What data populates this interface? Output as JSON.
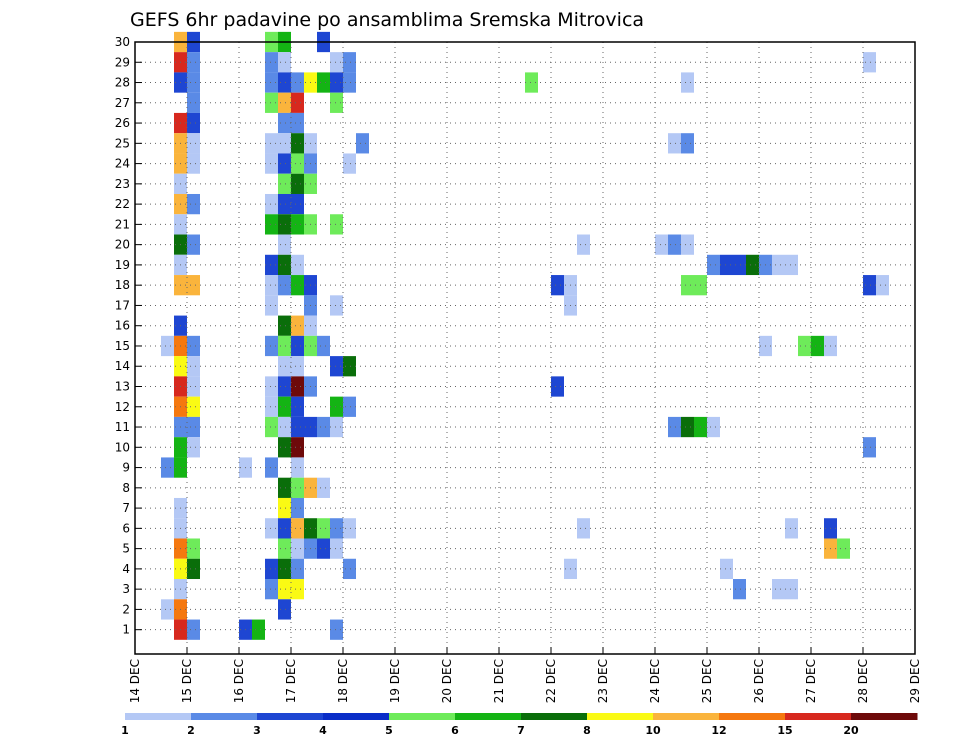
{
  "chart_data": {
    "type": "heatmap",
    "title": "GEFS 6hr padavine po ansamblima Sremska Mitrovica",
    "xlabel": "",
    "ylabel": "",
    "x_ticks": [
      "14 DEC",
      "15 DEC",
      "16 DEC",
      "17 DEC",
      "18 DEC",
      "19 DEC",
      "20 DEC",
      "21 DEC",
      "22 DEC",
      "23 DEC",
      "24 DEC",
      "25 DEC",
      "26 DEC",
      "27 DEC",
      "28 DEC",
      "29 DEC"
    ],
    "xlim": [
      0,
      60
    ],
    "x_unit": "6-hour steps from 14 DEC 00Z",
    "y_ticks": [
      1,
      2,
      3,
      4,
      5,
      6,
      7,
      8,
      9,
      10,
      11,
      12,
      13,
      14,
      15,
      16,
      17,
      18,
      19,
      20,
      21,
      22,
      23,
      24,
      25,
      26,
      27,
      28,
      29,
      30
    ],
    "ylim": [
      0,
      30
    ],
    "grid": true,
    "colorbar": {
      "labels": [
        "1",
        "2",
        "3",
        "4",
        "5",
        "6",
        "7",
        "8",
        "10",
        "12",
        "15",
        "20"
      ],
      "colors": [
        "#b4c8f5",
        "#5a8ae6",
        "#1e46d2",
        "#0a2dc8",
        "#6eeb5a",
        "#14b414",
        "#0a6e0a",
        "#fafa14",
        "#fab43c",
        "#f5780f",
        "#d7281e",
        "#6e0a0a"
      ]
    },
    "cells": [
      {
        "x": 3,
        "y": 30,
        "level": 10
      },
      {
        "x": 4,
        "y": 30,
        "level": 3
      },
      {
        "x": 10,
        "y": 30,
        "level": 5
      },
      {
        "x": 11,
        "y": 30,
        "level": 6
      },
      {
        "x": 14,
        "y": 30,
        "level": 3
      },
      {
        "x": 3,
        "y": 29,
        "level": 15
      },
      {
        "x": 4,
        "y": 29,
        "level": 2
      },
      {
        "x": 10,
        "y": 29,
        "level": 2
      },
      {
        "x": 11,
        "y": 29,
        "level": 1
      },
      {
        "x": 15,
        "y": 29,
        "level": 1
      },
      {
        "x": 16,
        "y": 29,
        "level": 2
      },
      {
        "x": 56,
        "y": 29,
        "level": 1
      },
      {
        "x": 3,
        "y": 28,
        "level": 3
      },
      {
        "x": 4,
        "y": 28,
        "level": 2
      },
      {
        "x": 10,
        "y": 28,
        "level": 2
      },
      {
        "x": 11,
        "y": 28,
        "level": 3
      },
      {
        "x": 12,
        "y": 28,
        "level": 2
      },
      {
        "x": 13,
        "y": 28,
        "level": 8
      },
      {
        "x": 14,
        "y": 28,
        "level": 6
      },
      {
        "x": 15,
        "y": 28,
        "level": 3
      },
      {
        "x": 16,
        "y": 28,
        "level": 2
      },
      {
        "x": 30,
        "y": 28,
        "level": 5
      },
      {
        "x": 42,
        "y": 28,
        "level": 1
      },
      {
        "x": 4,
        "y": 27,
        "level": 2
      },
      {
        "x": 10,
        "y": 27,
        "level": 5
      },
      {
        "x": 11,
        "y": 27,
        "level": 10
      },
      {
        "x": 12,
        "y": 27,
        "level": 15
      },
      {
        "x": 15,
        "y": 27,
        "level": 5
      },
      {
        "x": 3,
        "y": 26,
        "level": 15
      },
      {
        "x": 4,
        "y": 26,
        "level": 3
      },
      {
        "x": 11,
        "y": 26,
        "level": 2
      },
      {
        "x": 12,
        "y": 26,
        "level": 2
      },
      {
        "x": 3,
        "y": 25,
        "level": 10
      },
      {
        "x": 4,
        "y": 25,
        "level": 1
      },
      {
        "x": 10,
        "y": 25,
        "level": 1
      },
      {
        "x": 11,
        "y": 25,
        "level": 1
      },
      {
        "x": 12,
        "y": 25,
        "level": 7
      },
      {
        "x": 13,
        "y": 25,
        "level": 1
      },
      {
        "x": 17,
        "y": 25,
        "level": 2
      },
      {
        "x": 41,
        "y": 25,
        "level": 1
      },
      {
        "x": 42,
        "y": 25,
        "level": 2
      },
      {
        "x": 3,
        "y": 24,
        "level": 10
      },
      {
        "x": 4,
        "y": 24,
        "level": 1
      },
      {
        "x": 10,
        "y": 24,
        "level": 1
      },
      {
        "x": 11,
        "y": 24,
        "level": 3
      },
      {
        "x": 12,
        "y": 24,
        "level": 5
      },
      {
        "x": 13,
        "y": 24,
        "level": 2
      },
      {
        "x": 16,
        "y": 24,
        "level": 1
      },
      {
        "x": 3,
        "y": 23,
        "level": 1
      },
      {
        "x": 11,
        "y": 23,
        "level": 5
      },
      {
        "x": 12,
        "y": 23,
        "level": 7
      },
      {
        "x": 13,
        "y": 23,
        "level": 5
      },
      {
        "x": 3,
        "y": 22,
        "level": 10
      },
      {
        "x": 4,
        "y": 22,
        "level": 2
      },
      {
        "x": 10,
        "y": 22,
        "level": 1
      },
      {
        "x": 11,
        "y": 22,
        "level": 3
      },
      {
        "x": 12,
        "y": 22,
        "level": 3
      },
      {
        "x": 3,
        "y": 21,
        "level": 1
      },
      {
        "x": 10,
        "y": 21,
        "level": 6
      },
      {
        "x": 11,
        "y": 21,
        "level": 7
      },
      {
        "x": 12,
        "y": 21,
        "level": 6
      },
      {
        "x": 13,
        "y": 21,
        "level": 5
      },
      {
        "x": 15,
        "y": 21,
        "level": 5
      },
      {
        "x": 3,
        "y": 20,
        "level": 7
      },
      {
        "x": 4,
        "y": 20,
        "level": 2
      },
      {
        "x": 11,
        "y": 20,
        "level": 1
      },
      {
        "x": 34,
        "y": 20,
        "level": 1
      },
      {
        "x": 40,
        "y": 20,
        "level": 1
      },
      {
        "x": 41,
        "y": 20,
        "level": 2
      },
      {
        "x": 42,
        "y": 20,
        "level": 1
      },
      {
        "x": 3,
        "y": 19,
        "level": 1
      },
      {
        "x": 10,
        "y": 19,
        "level": 3
      },
      {
        "x": 11,
        "y": 19,
        "level": 7
      },
      {
        "x": 12,
        "y": 19,
        "level": 1
      },
      {
        "x": 44,
        "y": 19,
        "level": 2
      },
      {
        "x": 45,
        "y": 19,
        "level": 3
      },
      {
        "x": 46,
        "y": 19,
        "level": 3
      },
      {
        "x": 47,
        "y": 19,
        "level": 7
      },
      {
        "x": 48,
        "y": 19,
        "level": 2
      },
      {
        "x": 49,
        "y": 19,
        "level": 1
      },
      {
        "x": 50,
        "y": 19,
        "level": 1
      },
      {
        "x": 3,
        "y": 18,
        "level": 10
      },
      {
        "x": 4,
        "y": 18,
        "level": 10
      },
      {
        "x": 10,
        "y": 18,
        "level": 1
      },
      {
        "x": 11,
        "y": 18,
        "level": 2
      },
      {
        "x": 12,
        "y": 18,
        "level": 6
      },
      {
        "x": 13,
        "y": 18,
        "level": 3
      },
      {
        "x": 32,
        "y": 18,
        "level": 3
      },
      {
        "x": 33,
        "y": 18,
        "level": 1
      },
      {
        "x": 42,
        "y": 18,
        "level": 5
      },
      {
        "x": 43,
        "y": 18,
        "level": 5
      },
      {
        "x": 56,
        "y": 18,
        "level": 3
      },
      {
        "x": 57,
        "y": 18,
        "level": 1
      },
      {
        "x": 10,
        "y": 17,
        "level": 1
      },
      {
        "x": 13,
        "y": 17,
        "level": 2
      },
      {
        "x": 15,
        "y": 17,
        "level": 1
      },
      {
        "x": 33,
        "y": 17,
        "level": 1
      },
      {
        "x": 3,
        "y": 16,
        "level": 3
      },
      {
        "x": 11,
        "y": 16,
        "level": 7
      },
      {
        "x": 12,
        "y": 16,
        "level": 10
      },
      {
        "x": 13,
        "y": 16,
        "level": 1
      },
      {
        "x": 2,
        "y": 15,
        "level": 1
      },
      {
        "x": 3,
        "y": 15,
        "level": 12
      },
      {
        "x": 4,
        "y": 15,
        "level": 2
      },
      {
        "x": 10,
        "y": 15,
        "level": 2
      },
      {
        "x": 11,
        "y": 15,
        "level": 5
      },
      {
        "x": 12,
        "y": 15,
        "level": 3
      },
      {
        "x": 13,
        "y": 15,
        "level": 5
      },
      {
        "x": 14,
        "y": 15,
        "level": 2
      },
      {
        "x": 48,
        "y": 15,
        "level": 1
      },
      {
        "x": 51,
        "y": 15,
        "level": 5
      },
      {
        "x": 52,
        "y": 15,
        "level": 6
      },
      {
        "x": 53,
        "y": 15,
        "level": 1
      },
      {
        "x": 3,
        "y": 14,
        "level": 8
      },
      {
        "x": 4,
        "y": 14,
        "level": 1
      },
      {
        "x": 11,
        "y": 14,
        "level": 1
      },
      {
        "x": 12,
        "y": 14,
        "level": 1
      },
      {
        "x": 15,
        "y": 14,
        "level": 3
      },
      {
        "x": 16,
        "y": 14,
        "level": 7
      },
      {
        "x": 3,
        "y": 13,
        "level": 15
      },
      {
        "x": 4,
        "y": 13,
        "level": 1
      },
      {
        "x": 10,
        "y": 13,
        "level": 1
      },
      {
        "x": 11,
        "y": 13,
        "level": 3
      },
      {
        "x": 12,
        "y": 13,
        "level": 20
      },
      {
        "x": 13,
        "y": 13,
        "level": 2
      },
      {
        "x": 32,
        "y": 13,
        "level": 3
      },
      {
        "x": 3,
        "y": 12,
        "level": 12
      },
      {
        "x": 4,
        "y": 12,
        "level": 8
      },
      {
        "x": 10,
        "y": 12,
        "level": 1
      },
      {
        "x": 11,
        "y": 12,
        "level": 6
      },
      {
        "x": 12,
        "y": 12,
        "level": 3
      },
      {
        "x": 15,
        "y": 12,
        "level": 6
      },
      {
        "x": 16,
        "y": 12,
        "level": 2
      },
      {
        "x": 3,
        "y": 11,
        "level": 2
      },
      {
        "x": 4,
        "y": 11,
        "level": 2
      },
      {
        "x": 10,
        "y": 11,
        "level": 5
      },
      {
        "x": 11,
        "y": 11,
        "level": 1
      },
      {
        "x": 12,
        "y": 11,
        "level": 3
      },
      {
        "x": 13,
        "y": 11,
        "level": 3
      },
      {
        "x": 14,
        "y": 11,
        "level": 2
      },
      {
        "x": 15,
        "y": 11,
        "level": 1
      },
      {
        "x": 41,
        "y": 11,
        "level": 2
      },
      {
        "x": 42,
        "y": 11,
        "level": 7
      },
      {
        "x": 43,
        "y": 11,
        "level": 6
      },
      {
        "x": 44,
        "y": 11,
        "level": 1
      },
      {
        "x": 3,
        "y": 10,
        "level": 6
      },
      {
        "x": 4,
        "y": 10,
        "level": 1
      },
      {
        "x": 11,
        "y": 10,
        "level": 7
      },
      {
        "x": 12,
        "y": 10,
        "level": 20
      },
      {
        "x": 56,
        "y": 10,
        "level": 2
      },
      {
        "x": 2,
        "y": 9,
        "level": 2
      },
      {
        "x": 3,
        "y": 9,
        "level": 6
      },
      {
        "x": 8,
        "y": 9,
        "level": 1
      },
      {
        "x": 10,
        "y": 9,
        "level": 2
      },
      {
        "x": 12,
        "y": 9,
        "level": 1
      },
      {
        "x": 11,
        "y": 8,
        "level": 7
      },
      {
        "x": 12,
        "y": 8,
        "level": 5
      },
      {
        "x": 13,
        "y": 8,
        "level": 10
      },
      {
        "x": 14,
        "y": 8,
        "level": 1
      },
      {
        "x": 3,
        "y": 7,
        "level": 1
      },
      {
        "x": 11,
        "y": 7,
        "level": 8
      },
      {
        "x": 12,
        "y": 7,
        "level": 2
      },
      {
        "x": 3,
        "y": 6,
        "level": 1
      },
      {
        "x": 10,
        "y": 6,
        "level": 1
      },
      {
        "x": 11,
        "y": 6,
        "level": 3
      },
      {
        "x": 12,
        "y": 6,
        "level": 10
      },
      {
        "x": 13,
        "y": 6,
        "level": 7
      },
      {
        "x": 14,
        "y": 6,
        "level": 5
      },
      {
        "x": 15,
        "y": 6,
        "level": 2
      },
      {
        "x": 16,
        "y": 6,
        "level": 1
      },
      {
        "x": 34,
        "y": 6,
        "level": 1
      },
      {
        "x": 50,
        "y": 6,
        "level": 1
      },
      {
        "x": 53,
        "y": 6,
        "level": 3
      },
      {
        "x": 3,
        "y": 5,
        "level": 12
      },
      {
        "x": 4,
        "y": 5,
        "level": 5
      },
      {
        "x": 11,
        "y": 5,
        "level": 5
      },
      {
        "x": 12,
        "y": 5,
        "level": 1
      },
      {
        "x": 13,
        "y": 5,
        "level": 2
      },
      {
        "x": 14,
        "y": 5,
        "level": 3
      },
      {
        "x": 15,
        "y": 5,
        "level": 1
      },
      {
        "x": 53,
        "y": 5,
        "level": 10
      },
      {
        "x": 54,
        "y": 5,
        "level": 5
      },
      {
        "x": 3,
        "y": 4,
        "level": 8
      },
      {
        "x": 4,
        "y": 4,
        "level": 7
      },
      {
        "x": 10,
        "y": 4,
        "level": 3
      },
      {
        "x": 11,
        "y": 4,
        "level": 7
      },
      {
        "x": 12,
        "y": 4,
        "level": 2
      },
      {
        "x": 16,
        "y": 4,
        "level": 2
      },
      {
        "x": 33,
        "y": 4,
        "level": 1
      },
      {
        "x": 45,
        "y": 4,
        "level": 1
      },
      {
        "x": 3,
        "y": 3,
        "level": 1
      },
      {
        "x": 10,
        "y": 3,
        "level": 2
      },
      {
        "x": 11,
        "y": 3,
        "level": 8
      },
      {
        "x": 12,
        "y": 3,
        "level": 8
      },
      {
        "x": 46,
        "y": 3,
        "level": 2
      },
      {
        "x": 49,
        "y": 3,
        "level": 1
      },
      {
        "x": 50,
        "y": 3,
        "level": 1
      },
      {
        "x": 2,
        "y": 2,
        "level": 1
      },
      {
        "x": 3,
        "y": 2,
        "level": 12
      },
      {
        "x": 11,
        "y": 2,
        "level": 3
      },
      {
        "x": 3,
        "y": 1,
        "level": 15
      },
      {
        "x": 4,
        "y": 1,
        "level": 2
      },
      {
        "x": 8,
        "y": 1,
        "level": 3
      },
      {
        "x": 9,
        "y": 1,
        "level": 6
      },
      {
        "x": 15,
        "y": 1,
        "level": 2
      }
    ]
  }
}
